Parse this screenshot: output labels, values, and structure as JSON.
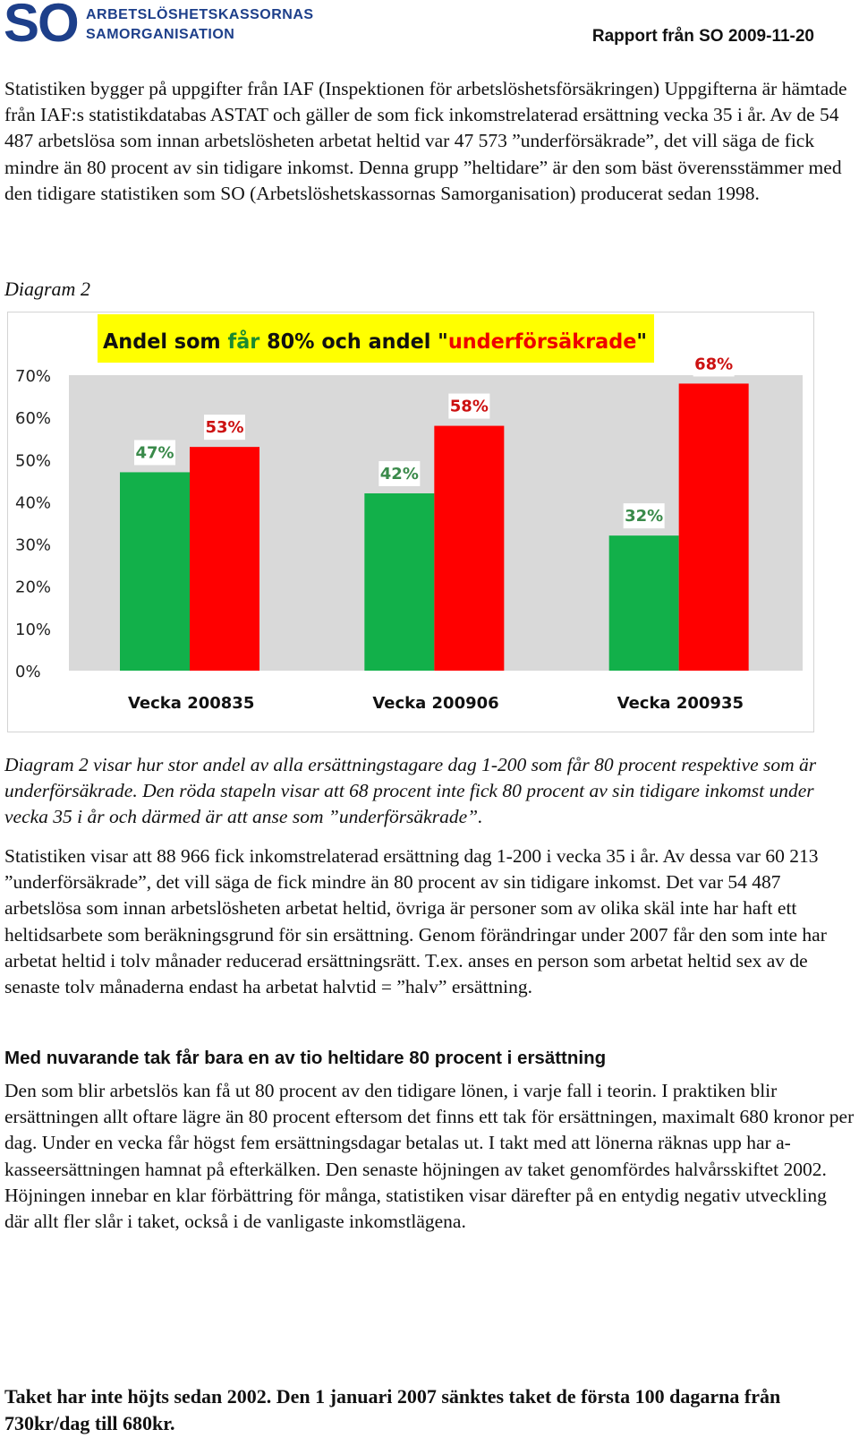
{
  "header": {
    "logo_so": "SO",
    "logo_line1": "ARBETSLÖSHETSKASSORNAS",
    "logo_line2": "SAMORGANISATION",
    "report_date": "Rapport från SO 2009-11-20"
  },
  "paragraph1": "Statistiken bygger på uppgifter från IAF (Inspektionen för arbetslöshetsförsäkringen) Uppgifterna är hämtade från IAF:s statistikdatabas ASTAT och gäller de som fick inkomstrelaterad ersättning vecka 35 i år. Av de 54 487 arbetslösa som innan arbetslösheten arbetat heltid var 47 573 ”underförsäkrade”, det vill säga de fick mindre än 80 procent av sin tidigare inkomst. Denna grupp ”heltidare” är den som bäst överensstämmer med den tidigare statistiken som SO (Arbetslöshetskassornas Samorganisation) producerat sedan 1998.",
  "diagram_label": "Diagram 2",
  "chart_data": {
    "type": "bar",
    "title_parts": [
      "Andel  som ",
      "får",
      " 80% och andel \"",
      "underförsäkrade",
      "\""
    ],
    "categories": [
      "Vecka 200835",
      "Vecka 200906",
      "Vecka 200935"
    ],
    "series": [
      {
        "values": [
          47,
          42,
          32
        ],
        "labels": [
          "47%",
          "42%",
          "32%"
        ],
        "color": "#12b04a",
        "label_color": "#3a8a4a"
      },
      {
        "values": [
          53,
          58,
          68
        ],
        "labels": [
          "53%",
          "58%",
          "68%"
        ],
        "color": "#ff0000",
        "label_color": "#cc1111"
      }
    ],
    "y_ticks": [
      "0%",
      "10%",
      "20%",
      "30%",
      "40%",
      "50%",
      "60%",
      "70%"
    ],
    "ylim": [
      0,
      70
    ],
    "title_highlight": "#ffff00",
    "plot_background": "#d9d9d9"
  },
  "paragraph2": "Diagram 2 visar hur stor andel av alla ersättningstagare dag 1-200 som får 80 procent respektive som är underförsäkrade. Den röda stapeln visar att 68 procent inte fick 80 procent av sin tidigare inkomst under vecka 35 i år och därmed är att anse som ”underförsäkrade”.",
  "paragraph3": "Statistiken visar att 88 966 fick inkomstrelaterad ersättning dag 1-200 i vecka 35 i år. Av dessa var 60 213 ”underförsäkrade”, det vill säga de fick mindre än 80 procent av sin tidigare inkomst. Det var 54 487 arbetslösa som innan arbetslösheten arbetat heltid, övriga är personer som av olika skäl inte har haft ett heltidsarbete som beräkningsgrund för sin ersättning. Genom förändringar under 2007 får den som inte har arbetat heltid i tolv månader reducerad ersättningsrätt. T.ex. anses en person som arbetat heltid sex av de senaste tolv månaderna endast ha arbetat halvtid = ”halv” ersättning.",
  "heading2": "Med nuvarande tak får bara en av tio heltidare 80 procent i ersättning",
  "paragraph4": "Den som blir arbetslös kan få ut 80 procent av den tidigare lönen, i varje fall i teorin. I praktiken blir ersättningen allt oftare lägre än 80 procent eftersom det finns ett tak för ersättningen, maximalt 680 kronor per dag. Under en vecka får högst fem ersättningsdagar betalas ut. I takt med att lönerna räknas upp har a-kasseersättningen hamnat på efterkälken. Den senaste höjningen av taket genomfördes halvårsskiftet 2002. Höjningen innebar en klar förbättring för många, statistiken visar därefter på en entydig negativ utveckling där allt fler slår i taket, också i de vanligaste inkomstlägena.",
  "paragraph5": "Taket har inte höjts sedan 2002. Den 1 januari 2007 sänktes taket de första 100 dagarna från 730kr/dag till 680kr."
}
